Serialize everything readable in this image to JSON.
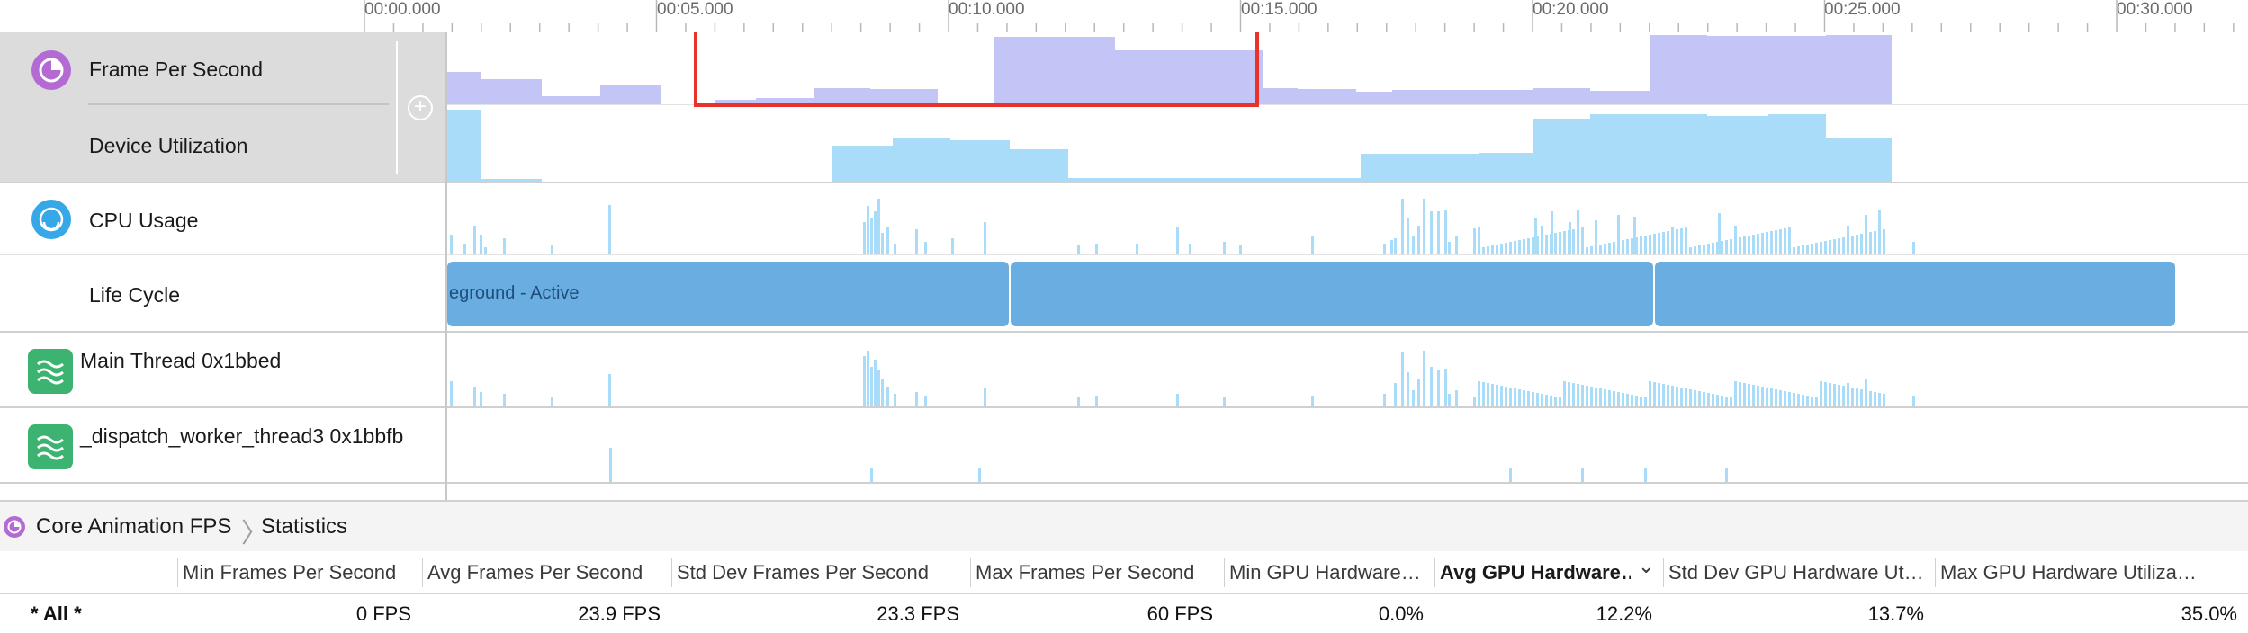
{
  "ruler": {
    "ticks": [
      {
        "label": "00:00.000"
      },
      {
        "label": "00:05.000"
      },
      {
        "label": "00:10.000"
      },
      {
        "label": "00:15.000"
      },
      {
        "label": "00:20.000"
      },
      {
        "label": "00:25.000"
      },
      {
        "label": "00:30.000"
      }
    ]
  },
  "tracks": {
    "fps": {
      "title": "Frame Per Second",
      "icon": "core-animation-icon"
    },
    "device": {
      "title": "Device Utilization"
    },
    "cpu": {
      "title": "CPU Usage",
      "icon": "cpu-gauge-icon"
    },
    "lifecycle": {
      "title": "Life Cycle",
      "state_label": "eground - Active"
    },
    "main_thread": {
      "title": "Main Thread  0x1bbed",
      "icon": "thread-icon"
    },
    "worker_thread": {
      "title": "_dispatch_worker_thread3  0x1bbfb",
      "icon": "thread-icon"
    }
  },
  "add_button": {
    "glyph": "+"
  },
  "colors": {
    "fps": "#c3c5f7",
    "device": "#a9dcf8",
    "cpu": "#a9dcf8",
    "lifecycle": "#6aade0",
    "selection": "#e8322a",
    "fps_icon": "#b46ad3",
    "cpu_icon": "#36a8e8",
    "thread_icon": "#3cb371"
  },
  "breadcrumb": {
    "items": [
      "Core Animation FPS",
      "Statistics"
    ],
    "separator": "〉"
  },
  "stats": {
    "columns": [
      "Min Frames Per Second",
      "Avg Frames Per Second",
      "Std Dev Frames Per Second",
      "Max Frames Per Second",
      "Min GPU Hardware…",
      "Avg GPU Hardware…",
      "Std Dev GPU Hardware Ut…",
      "Max GPU Hardware Utiliza…"
    ],
    "sort_indicator": "⌄",
    "row": {
      "label": "* All *",
      "values": [
        "0 FPS",
        "23.9 FPS",
        "23.3 FPS",
        "60 FPS",
        "0.0%",
        "12.2%",
        "13.7%",
        "35.0%"
      ]
    }
  }
}
